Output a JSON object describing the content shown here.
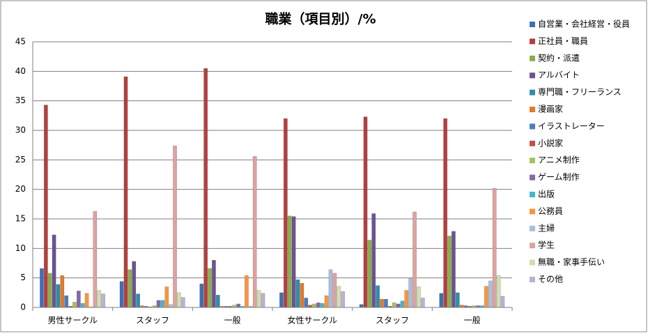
{
  "chart_data": {
    "type": "bar",
    "title": "職業（項目別）/%",
    "categories": [
      "男性サークル",
      "スタッフ",
      "一般",
      "女性サークル",
      "スタッフ",
      "一般"
    ],
    "ylim": [
      0,
      45
    ],
    "yticks": [
      0,
      5,
      10,
      15,
      20,
      25,
      30,
      35,
      40,
      45
    ],
    "grid": true,
    "legend": "right",
    "series": [
      {
        "name": "自営業・会社経営・役員",
        "color": "#3d6fb5",
        "values": [
          6.6,
          4.4,
          4.0,
          2.5,
          0.5,
          2.4
        ]
      },
      {
        "name": "正社員・職員",
        "color": "#b3403d",
        "values": [
          34.3,
          39.1,
          40.5,
          32.0,
          32.3,
          32.0
        ]
      },
      {
        "name": "契約・派遣",
        "color": "#8cad4c",
        "values": [
          5.8,
          6.4,
          6.6,
          15.5,
          11.4,
          12.1
        ]
      },
      {
        "name": "アルバイト",
        "color": "#6d5392",
        "values": [
          12.3,
          7.8,
          8.0,
          15.4,
          15.9,
          12.9
        ]
      },
      {
        "name": "専門職・フリーランス",
        "color": "#2e8ea7",
        "values": [
          3.9,
          2.3,
          2.1,
          4.7,
          3.7,
          2.5
        ]
      },
      {
        "name": "漫画家",
        "color": "#e07a2c",
        "values": [
          5.4,
          0.3,
          0.2,
          4.1,
          1.4,
          0.4
        ]
      },
      {
        "name": "イラストレーター",
        "color": "#4a7cc0",
        "values": [
          2.0,
          0.2,
          0.2,
          1.6,
          1.4,
          0.3
        ]
      },
      {
        "name": "小説家",
        "color": "#c4504b",
        "values": [
          0.2,
          0.1,
          0.2,
          0.4,
          0.2,
          0.2
        ]
      },
      {
        "name": "アニメ制作",
        "color": "#a2c35e",
        "values": [
          0.9,
          0.3,
          0.4,
          0.6,
          0.8,
          0.3
        ]
      },
      {
        "name": "ゲーム制作",
        "color": "#8468aa",
        "values": [
          2.8,
          1.2,
          0.6,
          0.8,
          0.6,
          0.3
        ]
      },
      {
        "name": "出版",
        "color": "#4bb3cc",
        "values": [
          0.7,
          1.2,
          0.2,
          0.7,
          1.1,
          0.3
        ]
      },
      {
        "name": "公務員",
        "color": "#f7953f",
        "values": [
          2.4,
          3.5,
          5.4,
          2.0,
          2.9,
          3.6
        ]
      },
      {
        "name": "主婦",
        "color": "#a9bde0",
        "values": [
          0.1,
          0.5,
          0.2,
          6.4,
          4.9,
          4.5
        ]
      },
      {
        "name": "学生",
        "color": "#dca3a1",
        "values": [
          16.3,
          27.4,
          25.6,
          5.8,
          16.2,
          20.2
        ]
      },
      {
        "name": "無職・家事手伝い",
        "color": "#cfdfb0",
        "values": [
          2.9,
          2.5,
          2.9,
          3.6,
          3.5,
          5.4
        ]
      },
      {
        "name": "その他",
        "color": "#bdb0d2",
        "values": [
          2.3,
          1.7,
          2.4,
          2.7,
          1.6,
          1.9
        ]
      }
    ]
  }
}
